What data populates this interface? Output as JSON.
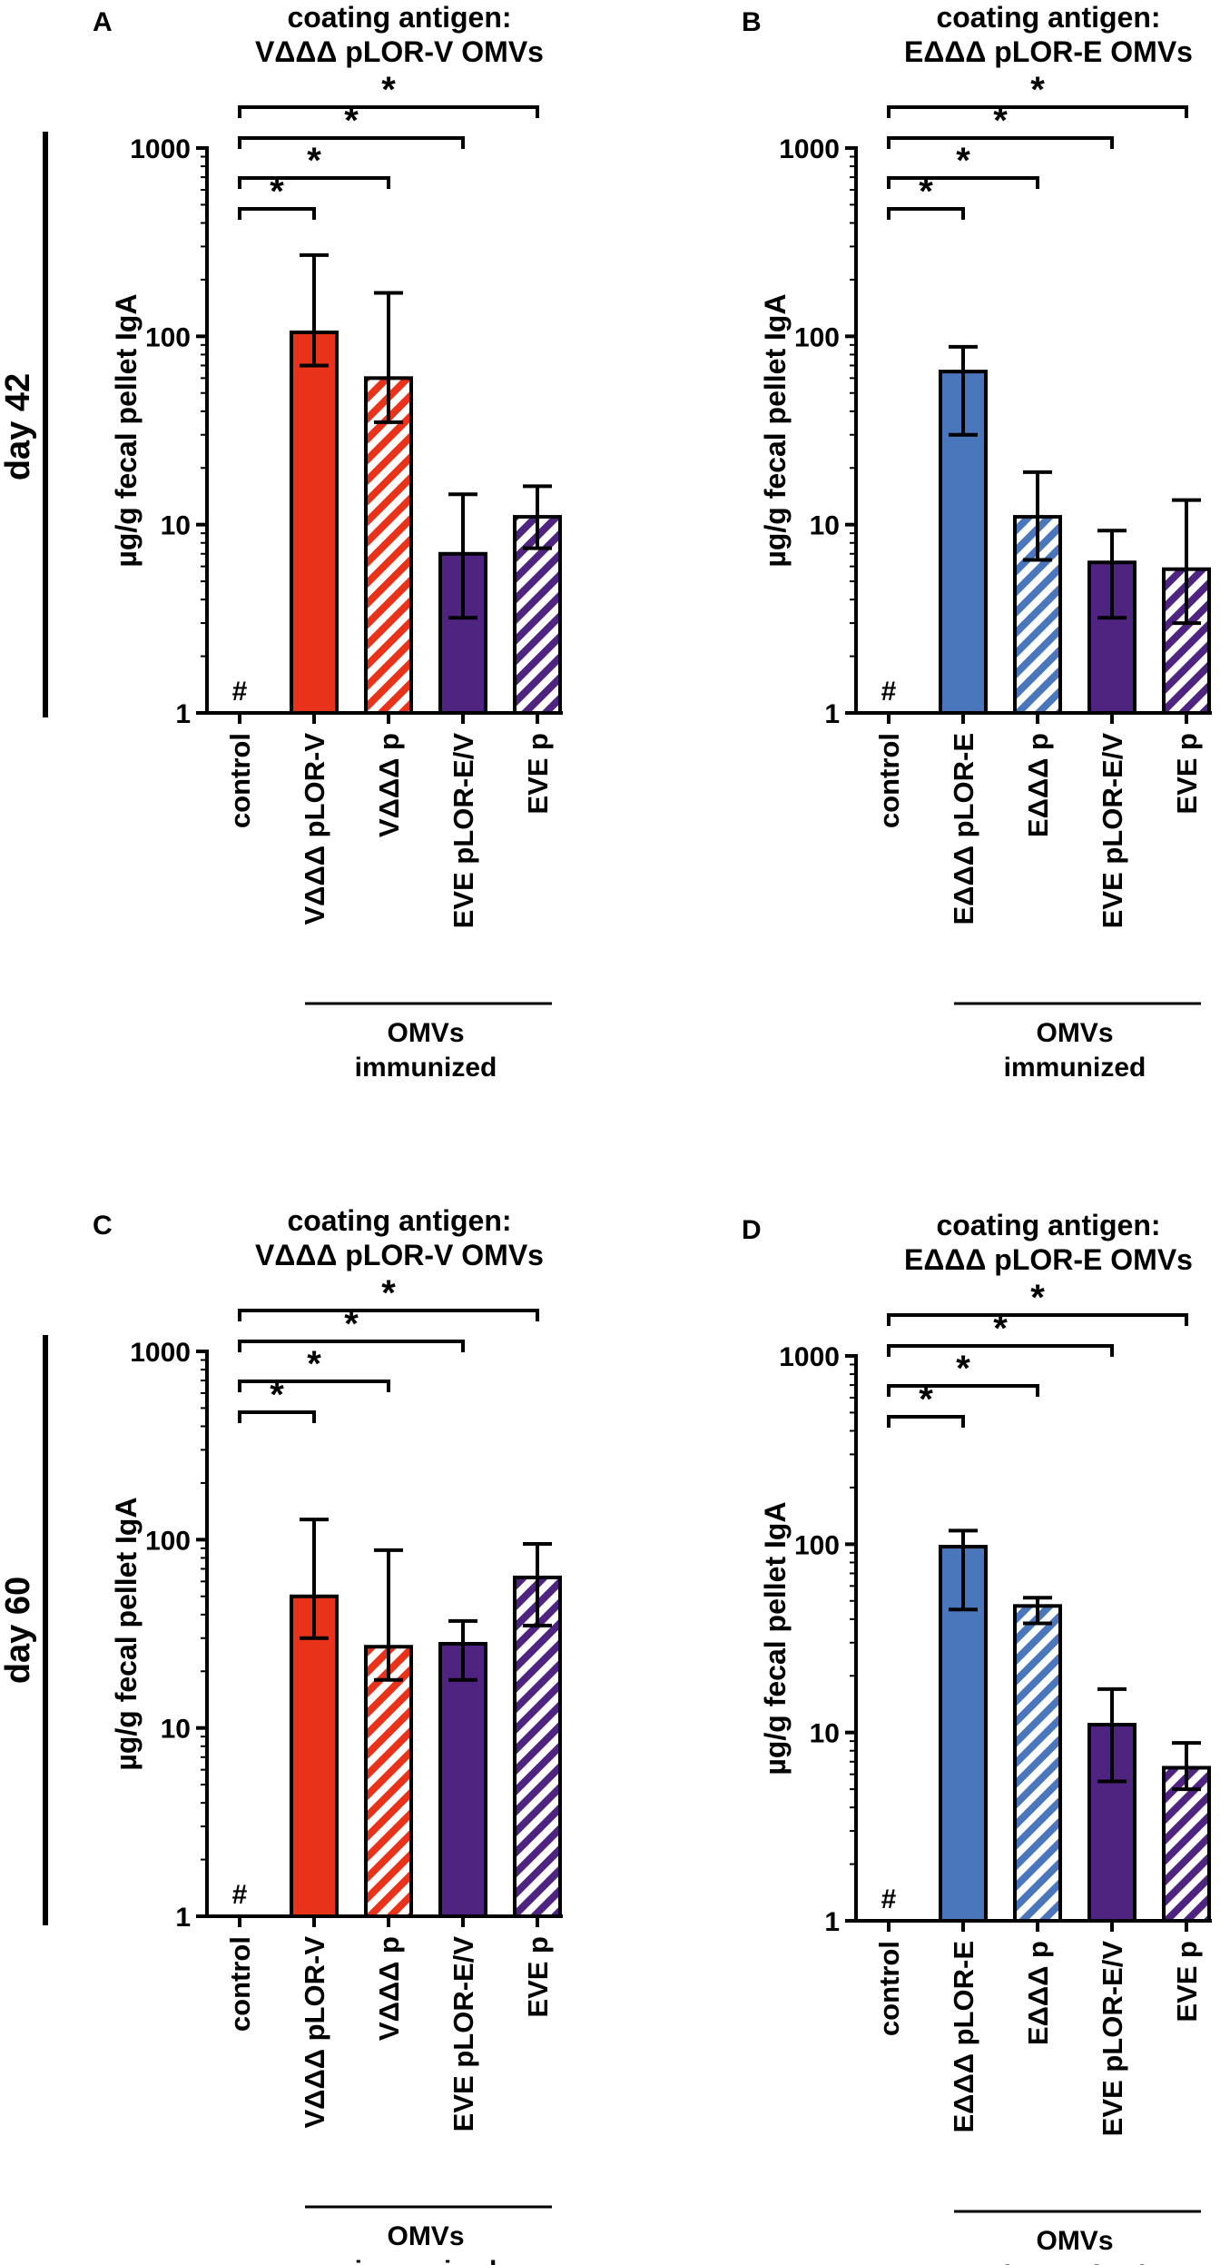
{
  "rows": [
    {
      "label": "day 42"
    },
    {
      "label": "day 60"
    }
  ],
  "colors": {
    "red": "#E8321A",
    "blue": "#4A77BC",
    "purple": "#4F2480",
    "axis": "#000000"
  },
  "chart_data": [
    {
      "panel": "A",
      "type": "bar",
      "row": "day 42",
      "title": [
        "coating antigen:",
        "VΔΔΔ pLOR-V OMVs"
      ],
      "ylabel": "µg/g fecal pellet IgA",
      "yscale": "log",
      "ylim": [
        1,
        1000
      ],
      "yticks": [
        "1",
        "10",
        "100",
        "1000"
      ],
      "categories": [
        "control",
        "VΔΔΔ pLOR-V",
        "VΔΔΔ p",
        "EVE pLOR-E/V",
        "EVE p"
      ],
      "values": [
        null,
        105,
        60,
        7,
        11
      ],
      "error_low": [
        null,
        70,
        35,
        3.2,
        7.5
      ],
      "error_high": [
        null,
        270,
        170,
        14.5,
        16
      ],
      "fills": [
        "none",
        "red",
        "red-hatched",
        "purple",
        "purple-hatched"
      ],
      "control_marker": "#",
      "significance": [
        "*",
        "*",
        "*",
        "*"
      ],
      "group_label": [
        "OMVs",
        "immunized"
      ]
    },
    {
      "panel": "B",
      "type": "bar",
      "row": "day 42",
      "title": [
        "coating antigen:",
        "EΔΔΔ pLOR-E OMVs"
      ],
      "ylabel": "µg/g fecal pellet IgA",
      "yscale": "log",
      "ylim": [
        1,
        1000
      ],
      "yticks": [
        "1",
        "10",
        "100",
        "1000"
      ],
      "categories": [
        "control",
        "EΔΔΔ pLOR-E",
        "EΔΔΔ p",
        "EVE pLOR-E/V",
        "EVE p"
      ],
      "values": [
        null,
        65,
        11,
        6.3,
        5.8
      ],
      "error_low": [
        null,
        30,
        6.5,
        3.2,
        3
      ],
      "error_high": [
        null,
        88,
        19,
        9.3,
        13.5
      ],
      "fills": [
        "none",
        "blue",
        "blue-hatched",
        "purple",
        "purple-hatched"
      ],
      "control_marker": "#",
      "significance": [
        "*",
        "*",
        "*",
        "*"
      ],
      "group_label": [
        "OMVs",
        "immunized"
      ]
    },
    {
      "panel": "C",
      "type": "bar",
      "row": "day 60",
      "title": [
        "coating antigen:",
        "VΔΔΔ pLOR-V OMVs"
      ],
      "ylabel": "µg/g fecal pellet IgA",
      "yscale": "log",
      "ylim": [
        1,
        1000
      ],
      "yticks": [
        "1",
        "10",
        "100",
        "1000"
      ],
      "categories": [
        "control",
        "VΔΔΔ pLOR-V",
        "VΔΔΔ p",
        "EVE pLOR-E/V",
        "EVE p"
      ],
      "values": [
        null,
        50,
        27,
        28,
        63
      ],
      "error_low": [
        null,
        30,
        18,
        18,
        35
      ],
      "error_high": [
        null,
        128,
        88,
        37,
        95
      ],
      "fills": [
        "none",
        "red",
        "red-hatched",
        "purple",
        "purple-hatched"
      ],
      "control_marker": "#",
      "significance": [
        "*",
        "*",
        "*",
        "*"
      ],
      "group_label": [
        "OMVs",
        "immunized"
      ]
    },
    {
      "panel": "D",
      "type": "bar",
      "row": "day 60",
      "title": [
        "coating antigen:",
        "EΔΔΔ pLOR-E OMVs"
      ],
      "ylabel": "µg/g fecal pellet IgA",
      "yscale": "log",
      "ylim": [
        1,
        1000
      ],
      "yticks": [
        "1",
        "10",
        "100",
        "1000"
      ],
      "categories": [
        "control",
        "EΔΔΔ pLOR-E",
        "EΔΔΔ p",
        "EVE pLOR-E/V",
        "EVE p"
      ],
      "values": [
        null,
        97,
        47,
        11,
        6.5
      ],
      "error_low": [
        null,
        45,
        38,
        5.5,
        5
      ],
      "error_high": [
        null,
        118,
        52,
        17,
        8.8
      ],
      "fills": [
        "none",
        "blue",
        "blue-hatched",
        "purple",
        "purple-hatched"
      ],
      "control_marker": "#",
      "significance": [
        "*",
        "*",
        "*",
        "*"
      ],
      "group_label": [
        "OMVs",
        "immunized"
      ]
    }
  ]
}
